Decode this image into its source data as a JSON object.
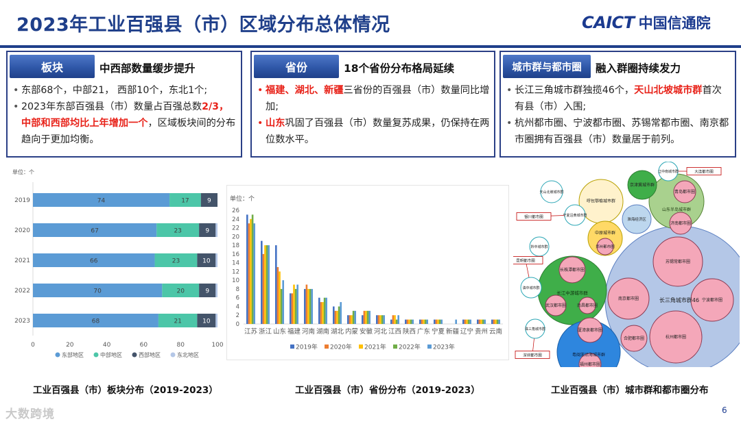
{
  "header": {
    "title": "2023年工业百强县（市）区域分布总体情况",
    "logo_latin": "CAICT",
    "logo_cn": "中国信通院"
  },
  "panels": [
    {
      "tag": "板块",
      "heading": "中西部数量缓步提升",
      "bullets": [
        {
          "parts": [
            {
              "t": "东部68个，中部21，  西部10个，东北1个;",
              "red": false
            }
          ]
        },
        {
          "parts": [
            {
              "t": "2023年东部百强县（市）数量占百强总数",
              "red": false
            },
            {
              "t": "2/3，中部和西部均比上年增加一个",
              "red": true
            },
            {
              "t": "，区域板块间的分布趋向于更加均衡。",
              "red": false
            }
          ]
        }
      ]
    },
    {
      "tag": "省份",
      "heading": "18个省份分布格局延续",
      "bullets": [
        {
          "parts": [
            {
              "t": "福建、湖北、新疆",
              "red": true
            },
            {
              "t": "三省份的百强县（市）数量同比增加;",
              "red": false
            }
          ]
        },
        {
          "parts": [
            {
              "t": "山东",
              "red": true
            },
            {
              "t": "巩固了百强县（市）数量复苏成果，仍保持在两位数水平。",
              "red": false
            }
          ]
        }
      ]
    },
    {
      "tag": "城市群与都市圈",
      "heading": "融入群圈持续发力",
      "bullets": [
        {
          "parts": [
            {
              "t": "长江三角城市群独揽46个，",
              "red": false
            },
            {
              "t": "天山北坡城市群",
              "red": true
            },
            {
              "t": "首次有县（市）入围;",
              "red": false
            }
          ]
        },
        {
          "parts": [
            {
              "t": "杭州都市圈、宁波都市圈、苏锡常都市圈、南京都市圈拥有百强县（市）数量居于前列。",
              "red": false
            }
          ]
        }
      ]
    }
  ],
  "chart_data": [
    {
      "type": "bar",
      "orientation": "horizontal",
      "stacked": true,
      "title": "工业百强县（市）板块分布（2019-2023）",
      "unit_label": "单位：个",
      "categories": [
        "2019",
        "2020",
        "2021",
        "2022",
        "2023"
      ],
      "series": [
        {
          "name": "东部地区",
          "color": "#5b9bd5",
          "values": [
            74,
            67,
            66,
            70,
            68
          ]
        },
        {
          "name": "中部地区",
          "color": "#4cc6a8",
          "values": [
            17,
            23,
            23,
            20,
            21
          ]
        },
        {
          "name": "西部地区",
          "color": "#44546a",
          "values": [
            9,
            9,
            10,
            9,
            10
          ]
        },
        {
          "name": "东北地区",
          "color": "#b4c7e7",
          "values": [
            0,
            1,
            1,
            1,
            1
          ]
        }
      ],
      "xlim": [
        0,
        100
      ],
      "xticks": [
        0,
        20,
        40,
        60,
        80,
        100
      ]
    },
    {
      "type": "bar",
      "orientation": "vertical",
      "title": "工业百强县（市）省份分布（2019-2023）",
      "unit_label": "单位：个",
      "categories": [
        "江苏",
        "浙江",
        "山东",
        "福建",
        "河南",
        "湖南",
        "湖北",
        "内蒙",
        "安徽",
        "河北",
        "江西",
        "陕西",
        "广东",
        "宁夏",
        "新疆",
        "辽宁",
        "贵州",
        "云南"
      ],
      "series": [
        {
          "name": "2019年",
          "color": "#4472c4",
          "values": [
            25,
            19,
            18,
            7,
            8,
            6,
            4,
            2,
            2,
            2,
            1,
            1,
            1,
            1,
            0,
            1,
            1,
            1
          ]
        },
        {
          "name": "2020年",
          "color": "#ed7d31",
          "values": [
            23,
            16,
            13,
            7,
            9,
            5,
            3,
            2,
            3,
            2,
            2,
            1,
            1,
            1,
            0,
            1,
            1,
            1
          ]
        },
        {
          "name": "2021年",
          "color": "#ffc000",
          "values": [
            24,
            18,
            12,
            9,
            8,
            5,
            3,
            2,
            3,
            2,
            2,
            1,
            1,
            1,
            0,
            1,
            1,
            1
          ]
        },
        {
          "name": "2022年",
          "color": "#70ad47",
          "values": [
            25,
            18,
            8,
            8,
            8,
            6,
            4,
            3,
            3,
            2,
            1,
            1,
            1,
            1,
            0,
            1,
            1,
            1
          ]
        },
        {
          "name": "2023年",
          "color": "#5b9bd5",
          "values": [
            23,
            18,
            10,
            9,
            8,
            6,
            5,
            3,
            3,
            2,
            2,
            1,
            1,
            1,
            1,
            1,
            1,
            1
          ]
        }
      ],
      "ylim": [
        0,
        26
      ],
      "yticks": [
        0,
        2,
        4,
        6,
        8,
        10,
        12,
        14,
        16,
        18,
        20,
        22,
        24,
        26
      ]
    },
    {
      "type": "bubble",
      "title": "工业百强县（市）城市群和都市圈分布",
      "nodes": [
        {
          "label": "长三角城市群46",
          "kind": "group"
        },
        {
          "label": "苏锡常都市圈",
          "kind": "circle"
        },
        {
          "label": "南京都市圈",
          "kind": "circle"
        },
        {
          "label": "宁波都市圈",
          "kind": "circle"
        },
        {
          "label": "杭州都市圈",
          "kind": "circle"
        },
        {
          "label": "合肥都市圈",
          "kind": "circle"
        },
        {
          "label": "长江中游城市群",
          "kind": "group"
        },
        {
          "label": "长株潭都市圈",
          "kind": "circle"
        },
        {
          "label": "武汉都市圈",
          "kind": "circle"
        },
        {
          "label": "南昌都市圈",
          "kind": "circle"
        },
        {
          "label": "粤闽浙沿海城市群",
          "kind": "group"
        },
        {
          "label": "厦漳泉都市圈",
          "kind": "circle"
        },
        {
          "label": "福州都市圈",
          "kind": "circle"
        },
        {
          "label": "山东半岛城市群",
          "kind": "group"
        },
        {
          "label": "青岛都市圈",
          "kind": "circle"
        },
        {
          "label": "济南都市圈",
          "kind": "circle"
        },
        {
          "label": "呼包鄂榆城市群",
          "kind": "group"
        },
        {
          "label": "京津冀城市群",
          "kind": "group"
        },
        {
          "label": "淮海经济区",
          "kind": "group"
        },
        {
          "label": "中原城市群",
          "kind": "group"
        },
        {
          "label": "郑州都市圈",
          "kind": "circle"
        },
        {
          "label": "天山北坡城市群",
          "kind": "group"
        },
        {
          "label": "宁夏沿黄城市群",
          "kind": "group"
        },
        {
          "label": "黔中城市群",
          "kind": "group"
        },
        {
          "label": "滇中城市群",
          "kind": "group"
        },
        {
          "label": "辽中南城市群",
          "kind": "group"
        },
        {
          "label": "珠三角城市群",
          "kind": "group"
        },
        {
          "label": "大连都市圈",
          "kind": "box"
        },
        {
          "label": "银川都市圈",
          "kind": "box"
        },
        {
          "label": "昆明都市圈",
          "kind": "box"
        },
        {
          "label": "深圳都市圈",
          "kind": "box"
        }
      ]
    }
  ],
  "captions": {
    "left": "工业百强县（市）板块分布（2019-2023）",
    "middle": "工业百强县（市）省份分布（2019-2023）",
    "right": "工业百强县（市）城市群和都市圈分布"
  },
  "footer": {
    "page": "6",
    "watermark": "大数跨境"
  }
}
